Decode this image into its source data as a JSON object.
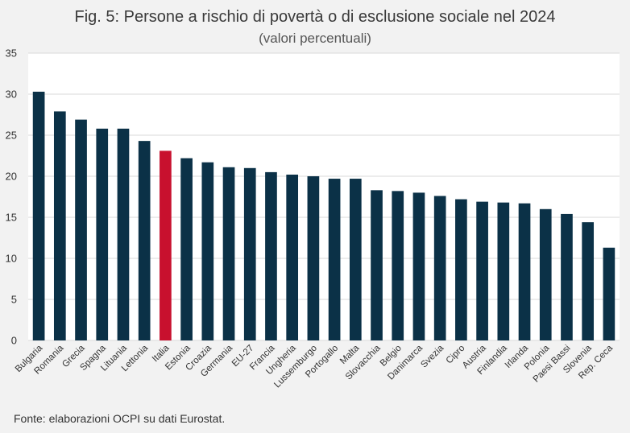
{
  "chart_data": {
    "type": "bar",
    "title": "Fig. 5: Persone a rischio di povertà o di esclusione sociale nel 2024",
    "subtitle": "(valori percentuali)",
    "categories": [
      "Bulgaria",
      "Romania",
      "Grecia",
      "Spagna",
      "Lituania",
      "Lettonia",
      "Italia",
      "Estonia",
      "Croazia",
      "Germania",
      "EU-27",
      "Francia",
      "Ungheria",
      "Lussemburgo",
      "Portogallo",
      "Malta",
      "Slovacchia",
      "Belgio",
      "Danimarca",
      "Svezia",
      "Cipro",
      "Austria",
      "Finlandia",
      "Irlanda",
      "Polonia",
      "Paesi Bassi",
      "Slovenia",
      "Rep. Ceca"
    ],
    "values": [
      30.3,
      27.9,
      26.9,
      25.8,
      25.8,
      24.3,
      23.1,
      22.2,
      21.7,
      21.1,
      21.0,
      20.5,
      20.2,
      20.0,
      19.7,
      19.7,
      18.3,
      18.2,
      18.0,
      17.6,
      17.2,
      16.9,
      16.8,
      16.7,
      16.0,
      15.4,
      14.4,
      11.3
    ],
    "highlight": "Italia",
    "ylim": [
      0,
      35
    ],
    "yticks": [
      0,
      5,
      10,
      15,
      20,
      25,
      30,
      35
    ],
    "grid": true,
    "xlabel": "",
    "ylabel": ""
  },
  "colors": {
    "bar": "#0b3147",
    "highlight": "#c8102e",
    "grid": "#d9d9d9",
    "background": "#f2f2f2",
    "plot_background": "#ffffff"
  },
  "footer": {
    "source": "Fonte: elaborazioni OCPI su dati Eurostat."
  }
}
